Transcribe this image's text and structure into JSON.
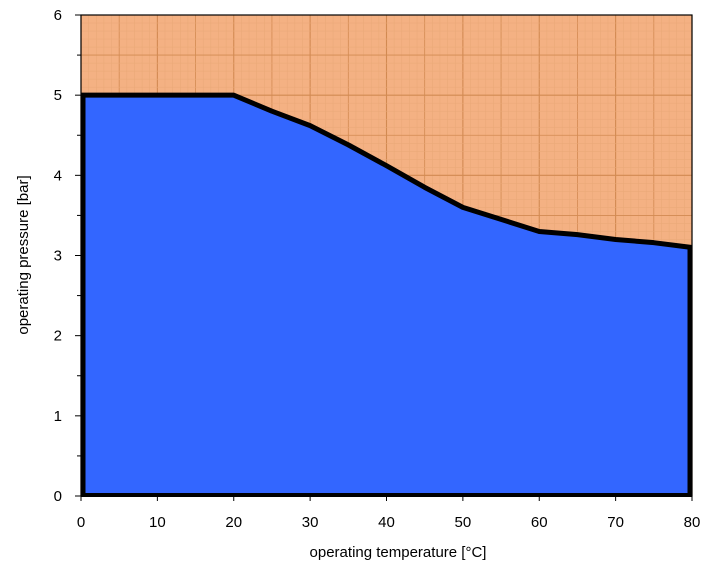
{
  "chart_data": {
    "type": "area",
    "title": "",
    "xlabel": "operating  temperature [°C]",
    "ylabel": "operating  pressure  [bar]",
    "xlim": [
      0,
      80
    ],
    "ylim": [
      0,
      6
    ],
    "xticks": [
      "0",
      "10",
      "20",
      "30",
      "40",
      "50",
      "60",
      "70",
      "80"
    ],
    "yticks": [
      "0",
      "1",
      "2",
      "3",
      "4",
      "5",
      "6"
    ],
    "grid": true,
    "series": [
      {
        "x": [
          0,
          20,
          25,
          30,
          35,
          40,
          45,
          50,
          55,
          60,
          65,
          70,
          75,
          80
        ],
        "y": [
          5.0,
          5.0,
          4.8,
          4.62,
          4.38,
          4.12,
          3.85,
          3.6,
          3.45,
          3.3,
          3.26,
          3.2,
          3.16,
          3.1
        ]
      }
    ],
    "colors": {
      "fill": "#3366ff",
      "background": "#f4b183",
      "boundary": "#000000",
      "grid_major": "#d28a52",
      "grid_minor": "#e9a877"
    }
  }
}
